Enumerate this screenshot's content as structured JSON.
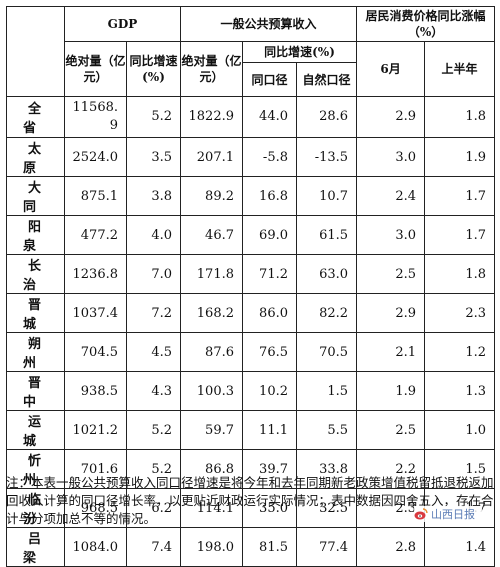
{
  "header": {
    "gdp": "GDP",
    "budget": "一般公共预算收入",
    "cpi": "居民消费价格同比涨幅（%）",
    "gdp_abs": "绝对量（亿元）",
    "gdp_growth": "同比增速(%)",
    "budget_abs": "绝对量（亿元）",
    "budget_growth": "同比增速(%)",
    "budget_same": "同口径",
    "budget_natural": "自然口径",
    "cpi_june": "6月",
    "cpi_half": "上半年"
  },
  "rows": [
    {
      "name": "全省",
      "gdp": "11568.9",
      "gdp_g": "5.2",
      "rev": "1822.9",
      "rev_same": "44.0",
      "rev_nat": "28.6",
      "cpi6": "2.9",
      "cpih": "1.8"
    },
    {
      "name": "太原",
      "gdp": "2524.0",
      "gdp_g": "3.5",
      "rev": "207.1",
      "rev_same": "-5.8",
      "rev_nat": "-13.5",
      "cpi6": "3.0",
      "cpih": "1.9"
    },
    {
      "name": "大同",
      "gdp": "875.1",
      "gdp_g": "3.8",
      "rev": "89.2",
      "rev_same": "16.8",
      "rev_nat": "10.7",
      "cpi6": "2.4",
      "cpih": "1.7"
    },
    {
      "name": "阳泉",
      "gdp": "477.2",
      "gdp_g": "4.0",
      "rev": "46.7",
      "rev_same": "69.0",
      "rev_nat": "61.5",
      "cpi6": "3.0",
      "cpih": "1.7"
    },
    {
      "name": "长治",
      "gdp": "1236.8",
      "gdp_g": "7.0",
      "rev": "171.8",
      "rev_same": "71.2",
      "rev_nat": "63.0",
      "cpi6": "2.5",
      "cpih": "1.8"
    },
    {
      "name": "晋城",
      "gdp": "1037.4",
      "gdp_g": "7.2",
      "rev": "168.2",
      "rev_same": "86.0",
      "rev_nat": "82.2",
      "cpi6": "2.9",
      "cpih": "2.3"
    },
    {
      "name": "朔州",
      "gdp": "704.5",
      "gdp_g": "4.5",
      "rev": "87.6",
      "rev_same": "76.5",
      "rev_nat": "70.5",
      "cpi6": "2.1",
      "cpih": "1.2"
    },
    {
      "name": "晋中",
      "gdp": "938.5",
      "gdp_g": "4.3",
      "rev": "100.3",
      "rev_same": "10.2",
      "rev_nat": "1.5",
      "cpi6": "1.9",
      "cpih": "1.3"
    },
    {
      "name": "运城",
      "gdp": "1021.2",
      "gdp_g": "5.2",
      "rev": "59.7",
      "rev_same": "11.1",
      "rev_nat": "5.5",
      "cpi6": "2.5",
      "cpih": "1.0"
    },
    {
      "name": "忻州",
      "gdp": "701.6",
      "gdp_g": "5.2",
      "rev": "86.8",
      "rev_same": "39.7",
      "rev_nat": "33.8",
      "cpi6": "2.2",
      "cpih": "1.5"
    },
    {
      "name": "临汾",
      "gdp": "968.5",
      "gdp_g": "6.2",
      "rev": "114.1",
      "rev_same": "35.0",
      "rev_nat": "32.5",
      "cpi6": "2.3",
      "cpih": "1.7"
    },
    {
      "name": "吕梁",
      "gdp": "1084.0",
      "gdp_g": "7.4",
      "rev": "198.0",
      "rev_same": "81.5",
      "rev_nat": "77.4",
      "cpi6": "2.8",
      "cpih": "1.4"
    }
  ],
  "note": "注：本表一般公共预算收入同口径增速是将今年和去年同期新老政策增值税留抵退税返加回收入计算的同口径增长率，以更贴近财政运行实际情况；表中数据因四舍五入，存在合计与分项加总不等的情况。",
  "watermark": {
    "label": "山西日报",
    "color": "#5a7bb5",
    "icon": "weibo-logo-icon"
  }
}
